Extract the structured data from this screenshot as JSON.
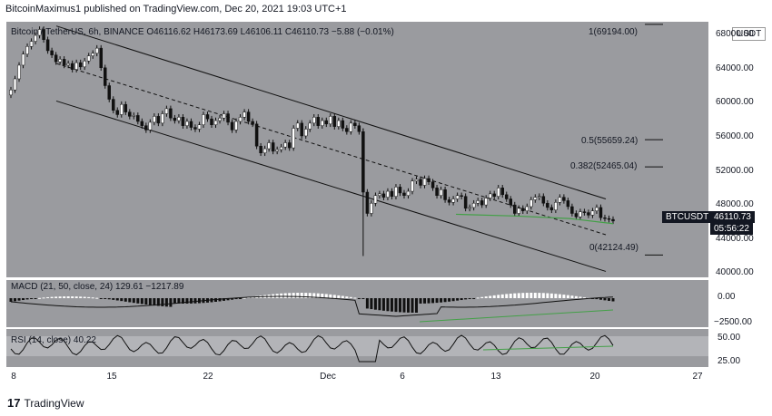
{
  "header": {
    "text": "BitcoinMaximus1 published on TradingView.com, Dec 20, 2021 19:03 UTC+1"
  },
  "footer": {
    "logo": "17",
    "brand": "TradingView"
  },
  "symbol": {
    "title": "Bitcoin / TetherUS, 6h, BINANCE",
    "open": "O46116.62",
    "high": "H46173.69",
    "low": "L46106.11",
    "close": "C46110.73",
    "change": "−5.88 (−0.01%)",
    "currency": "USDT",
    "ticker_badge": "BTCUSDT",
    "price_badge": "46110.73",
    "countdown_badge": "05:56:22"
  },
  "colors": {
    "panel": "#9a9b9f",
    "up": "#ffffff",
    "down": "#111111",
    "green": "#43a047",
    "line": "#111111"
  },
  "macd": {
    "label": "MACD (21, 50, close, 24)",
    "v1": "129.61",
    "v2": "−1217.89"
  },
  "rsi": {
    "label": "RSI (14, close)",
    "value": "40.22"
  },
  "fib_labels": [
    "1(69194.00)",
    "0.5(55659.24)",
    "0.382(52465.04)",
    "0(42124.49)"
  ],
  "chart_data": {
    "type": "candlestick",
    "symbol": "BTCUSDT",
    "timeframe": "6h",
    "y_ticks": [
      "68000.00",
      "64000.00",
      "60000.00",
      "56000.00",
      "52000.00",
      "48000.00",
      "44000.00",
      "40000.00"
    ],
    "ylim": [
      39500,
      69500
    ],
    "x_ticks": [
      "8",
      "15",
      "22",
      "Dec",
      "6",
      "13",
      "20",
      "27"
    ],
    "closes": [
      61500,
      62800,
      64400,
      65700,
      66600,
      67200,
      67900,
      68600,
      67400,
      66100,
      65600,
      64800,
      65100,
      64400,
      64600,
      63900,
      64700,
      64200,
      64900,
      65500,
      65800,
      66400,
      64100,
      62000,
      60400,
      59100,
      58600,
      59800,
      58900,
      58400,
      58500,
      57800,
      57300,
      56800,
      57700,
      58400,
      57600,
      58700,
      59300,
      58200,
      57900,
      58300,
      57300,
      57800,
      57100,
      56900,
      57400,
      58600,
      58100,
      57400,
      57900,
      58200,
      58700,
      57700,
      56800,
      57800,
      58300,
      58900,
      57800,
      57500,
      54900,
      54100,
      54600,
      55300,
      54300,
      54500,
      54800,
      55300,
      54700,
      57000,
      57600,
      56100,
      56900,
      57600,
      58300,
      57300,
      57900,
      57500,
      58400,
      57200,
      57900,
      57000,
      56600,
      57600,
      57300,
      56600,
      49500,
      47000,
      48200,
      49100,
      49300,
      48900,
      49600,
      49000,
      50100,
      49400,
      49100,
      49600,
      50800,
      51000,
      50300,
      51100,
      50700,
      50000,
      49100,
      49800,
      48600,
      48300,
      48700,
      49100,
      49000,
      47600,
      47700,
      48200,
      48500,
      48000,
      48800,
      49300,
      49000,
      50000,
      49200,
      48700,
      48000,
      47000,
      47600,
      47300,
      47800,
      48600,
      48900,
      49000,
      48200,
      47700,
      47400,
      48300,
      48900,
      48500,
      47800,
      47000,
      46600,
      47200,
      47100,
      46800,
      47300,
      47700,
      46500,
      46400,
      46300,
      46110.73
    ],
    "fib_levels": [
      {
        "ratio": "1",
        "price": 69194.0
      },
      {
        "ratio": "0.5",
        "price": 55659.24
      },
      {
        "ratio": "0.382",
        "price": 52465.04
      },
      {
        "ratio": "0",
        "price": 42124.49
      }
    ],
    "macd_ticks": [
      "0.00",
      "−2500.00"
    ],
    "rsi_ticks": [
      "50.00",
      "25.00"
    ]
  }
}
